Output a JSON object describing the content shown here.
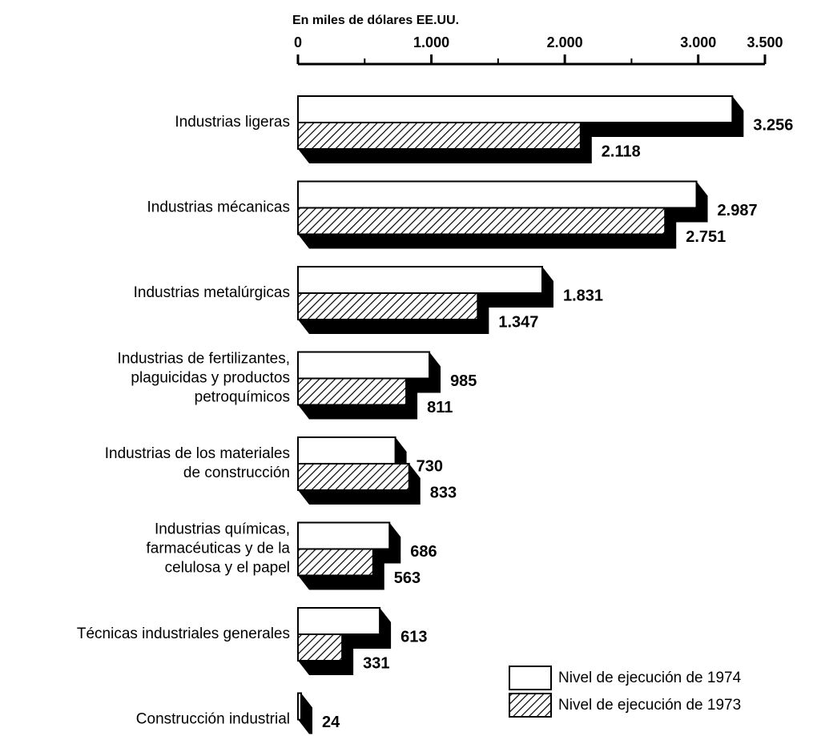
{
  "chart_data": {
    "type": "hbar3d",
    "axis_label": "En miles de dólares EE.UU.",
    "categories": [
      [
        "Industrias ligeras"
      ],
      [
        "Industrias mécanicas"
      ],
      [
        "Industrias metalúrgicas"
      ],
      [
        "Industrias de fertilizantes,",
        "plaguicidas y productos",
        "petroquímicos"
      ],
      [
        "Industrias de los materiales",
        "de construcción"
      ],
      [
        "Industrias químicas,",
        "farmacéuticas y de la",
        "celulosa y el papel"
      ],
      [
        "Técnicas industriales generales"
      ],
      [
        "Construcción industrial"
      ]
    ],
    "series": [
      {
        "name": "Nivel de ejecución de 1974",
        "color": "#ffffff",
        "pattern": "solid",
        "values": [
          3256,
          2987,
          1831,
          985,
          730,
          686,
          613,
          24
        ],
        "value_labels": [
          "3.256",
          "2.987",
          "1.831",
          "985",
          "730",
          "686",
          "613",
          "24"
        ]
      },
      {
        "name": "Nivel de ejecución de 1973",
        "color": "#ffffff",
        "pattern": "hatch",
        "values": [
          2118,
          2751,
          1347,
          811,
          833,
          563,
          331,
          null
        ],
        "value_labels": [
          "2.118",
          "2.751",
          "1.347",
          "811",
          "833",
          "563",
          "331",
          null
        ]
      }
    ],
    "xlim": [
      0,
      3500
    ],
    "xticks": [
      0,
      {
        "value": 1000,
        "label": "1.000"
      },
      {
        "value": 2000,
        "label": "2.000"
      },
      {
        "value": 3000,
        "label": "3.000"
      },
      {
        "value": 3500,
        "label": "3.500"
      }
    ],
    "xminorticks": [
      500,
      1500,
      2500
    ],
    "legend": "bottom-right"
  }
}
